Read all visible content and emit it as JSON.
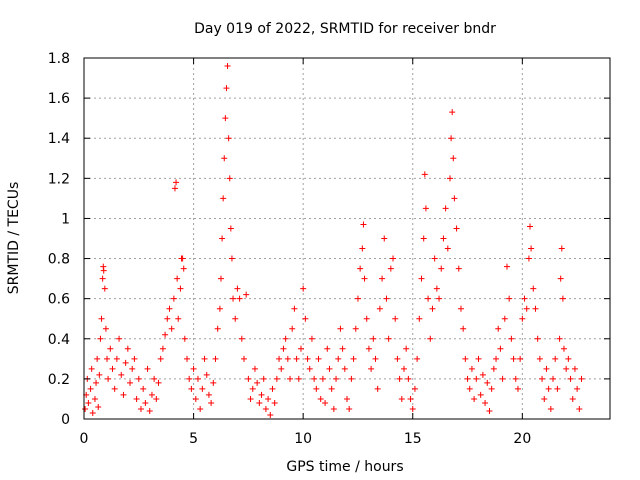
{
  "chart_data": {
    "type": "scatter",
    "title": "Day 019 of 2022, SRMTID for receiver bndr",
    "xlabel": "GPS time / hours",
    "ylabel": "SRMTID / TECUs",
    "xlim": [
      0,
      24
    ],
    "ylim": [
      0,
      1.8
    ],
    "xticks": [
      0,
      5,
      10,
      15,
      20
    ],
    "xtick_labels": [
      "0",
      "5",
      "10",
      "15",
      "20"
    ],
    "yticks": [
      0,
      0.2,
      0.4,
      0.6,
      0.8,
      1,
      1.2,
      1.4,
      1.6,
      1.8
    ],
    "ytick_labels": [
      "0",
      "0.2",
      "0.4",
      "0.6",
      "0.8",
      "1",
      "1.2",
      "1.4",
      "1.6",
      "1.8"
    ],
    "grid": true,
    "marker": "+",
    "color": "#ff0000",
    "series": [
      {
        "name": "SRMTID",
        "points": [
          [
            0.05,
            0.05
          ],
          [
            0.1,
            0.12
          ],
          [
            0.15,
            0.2
          ],
          [
            0.2,
            0.08
          ],
          [
            0.3,
            0.15
          ],
          [
            0.35,
            0.25
          ],
          [
            0.4,
            0.03
          ],
          [
            0.5,
            0.1
          ],
          [
            0.55,
            0.18
          ],
          [
            0.6,
            0.3
          ],
          [
            0.65,
            0.06
          ],
          [
            0.7,
            0.22
          ],
          [
            0.75,
            0.4
          ],
          [
            0.8,
            0.5
          ],
          [
            0.85,
            0.7
          ],
          [
            0.88,
            0.76
          ],
          [
            0.9,
            0.74
          ],
          [
            0.95,
            0.65
          ],
          [
            1.0,
            0.45
          ],
          [
            1.05,
            0.3
          ],
          [
            1.1,
            0.2
          ],
          [
            1.2,
            0.35
          ],
          [
            1.3,
            0.25
          ],
          [
            1.4,
            0.15
          ],
          [
            1.5,
            0.3
          ],
          [
            1.6,
            0.4
          ],
          [
            1.7,
            0.22
          ],
          [
            1.8,
            0.12
          ],
          [
            1.9,
            0.28
          ],
          [
            2.0,
            0.35
          ],
          [
            2.1,
            0.18
          ],
          [
            2.2,
            0.25
          ],
          [
            2.3,
            0.3
          ],
          [
            2.4,
            0.1
          ],
          [
            2.5,
            0.2
          ],
          [
            2.6,
            0.05
          ],
          [
            2.7,
            0.15
          ],
          [
            2.8,
            0.08
          ],
          [
            2.9,
            0.25
          ],
          [
            3.0,
            0.04
          ],
          [
            3.1,
            0.12
          ],
          [
            3.2,
            0.2
          ],
          [
            3.3,
            0.1
          ],
          [
            3.4,
            0.18
          ],
          [
            3.5,
            0.3
          ],
          [
            3.6,
            0.35
          ],
          [
            3.7,
            0.42
          ],
          [
            3.8,
            0.5
          ],
          [
            3.9,
            0.55
          ],
          [
            4.0,
            0.45
          ],
          [
            4.1,
            0.6
          ],
          [
            4.15,
            1.15
          ],
          [
            4.2,
            1.18
          ],
          [
            4.25,
            0.7
          ],
          [
            4.3,
            0.5
          ],
          [
            4.4,
            0.65
          ],
          [
            4.45,
            0.8
          ],
          [
            4.5,
            0.8
          ],
          [
            4.55,
            0.75
          ],
          [
            4.6,
            0.4
          ],
          [
            4.7,
            0.3
          ],
          [
            4.8,
            0.2
          ],
          [
            4.9,
            0.15
          ],
          [
            5.0,
            0.25
          ],
          [
            5.1,
            0.1
          ],
          [
            5.2,
            0.2
          ],
          [
            5.3,
            0.05
          ],
          [
            5.4,
            0.15
          ],
          [
            5.5,
            0.3
          ],
          [
            5.6,
            0.22
          ],
          [
            5.7,
            0.12
          ],
          [
            5.8,
            0.08
          ],
          [
            5.9,
            0.18
          ],
          [
            6.0,
            0.3
          ],
          [
            6.1,
            0.45
          ],
          [
            6.2,
            0.55
          ],
          [
            6.25,
            0.7
          ],
          [
            6.3,
            0.9
          ],
          [
            6.35,
            1.1
          ],
          [
            6.4,
            1.3
          ],
          [
            6.45,
            1.5
          ],
          [
            6.5,
            1.65
          ],
          [
            6.55,
            1.76
          ],
          [
            6.6,
            1.4
          ],
          [
            6.65,
            1.2
          ],
          [
            6.7,
            0.95
          ],
          [
            6.75,
            0.8
          ],
          [
            6.8,
            0.6
          ],
          [
            6.9,
            0.5
          ],
          [
            7.0,
            0.65
          ],
          [
            7.1,
            0.6
          ],
          [
            7.2,
            0.4
          ],
          [
            7.3,
            0.3
          ],
          [
            7.4,
            0.62
          ],
          [
            7.5,
            0.2
          ],
          [
            7.6,
            0.1
          ],
          [
            7.7,
            0.15
          ],
          [
            7.8,
            0.25
          ],
          [
            7.9,
            0.18
          ],
          [
            8.0,
            0.08
          ],
          [
            8.1,
            0.12
          ],
          [
            8.2,
            0.2
          ],
          [
            8.3,
            0.05
          ],
          [
            8.4,
            0.1
          ],
          [
            8.5,
            0.02
          ],
          [
            8.6,
            0.15
          ],
          [
            8.7,
            0.08
          ],
          [
            8.8,
            0.2
          ],
          [
            8.9,
            0.3
          ],
          [
            9.0,
            0.25
          ],
          [
            9.1,
            0.35
          ],
          [
            9.2,
            0.4
          ],
          [
            9.3,
            0.3
          ],
          [
            9.4,
            0.2
          ],
          [
            9.5,
            0.45
          ],
          [
            9.6,
            0.55
          ],
          [
            9.7,
            0.3
          ],
          [
            9.8,
            0.2
          ],
          [
            9.9,
            0.35
          ],
          [
            10.0,
            0.65
          ],
          [
            10.1,
            0.5
          ],
          [
            10.2,
            0.3
          ],
          [
            10.3,
            0.25
          ],
          [
            10.4,
            0.4
          ],
          [
            10.5,
            0.2
          ],
          [
            10.6,
            0.15
          ],
          [
            10.7,
            0.3
          ],
          [
            10.8,
            0.1
          ],
          [
            10.9,
            0.2
          ],
          [
            11.0,
            0.08
          ],
          [
            11.1,
            0.35
          ],
          [
            11.2,
            0.25
          ],
          [
            11.3,
            0.15
          ],
          [
            11.4,
            0.05
          ],
          [
            11.5,
            0.2
          ],
          [
            11.6,
            0.3
          ],
          [
            11.7,
            0.45
          ],
          [
            11.8,
            0.35
          ],
          [
            11.9,
            0.25
          ],
          [
            12.0,
            0.1
          ],
          [
            12.1,
            0.05
          ],
          [
            12.2,
            0.2
          ],
          [
            12.3,
            0.3
          ],
          [
            12.4,
            0.45
          ],
          [
            12.5,
            0.6
          ],
          [
            12.6,
            0.75
          ],
          [
            12.7,
            0.85
          ],
          [
            12.75,
            0.97
          ],
          [
            12.8,
            0.7
          ],
          [
            12.9,
            0.5
          ],
          [
            13.0,
            0.35
          ],
          [
            13.1,
            0.25
          ],
          [
            13.2,
            0.4
          ],
          [
            13.3,
            0.3
          ],
          [
            13.4,
            0.15
          ],
          [
            13.5,
            0.55
          ],
          [
            13.6,
            0.7
          ],
          [
            13.7,
            0.9
          ],
          [
            13.8,
            0.6
          ],
          [
            13.9,
            0.4
          ],
          [
            14.0,
            0.75
          ],
          [
            14.1,
            0.8
          ],
          [
            14.2,
            0.5
          ],
          [
            14.3,
            0.3
          ],
          [
            14.4,
            0.2
          ],
          [
            14.5,
            0.1
          ],
          [
            14.6,
            0.25
          ],
          [
            14.7,
            0.35
          ],
          [
            14.8,
            0.2
          ],
          [
            14.9,
            0.1
          ],
          [
            15.0,
            0.05
          ],
          [
            15.1,
            0.15
          ],
          [
            15.2,
            0.3
          ],
          [
            15.3,
            0.5
          ],
          [
            15.4,
            0.7
          ],
          [
            15.5,
            0.9
          ],
          [
            15.55,
            1.22
          ],
          [
            15.6,
            1.05
          ],
          [
            15.7,
            0.6
          ],
          [
            15.8,
            0.4
          ],
          [
            15.9,
            0.55
          ],
          [
            16.0,
            0.8
          ],
          [
            16.1,
            0.65
          ],
          [
            16.2,
            0.6
          ],
          [
            16.3,
            0.75
          ],
          [
            16.4,
            0.9
          ],
          [
            16.5,
            1.05
          ],
          [
            16.6,
            0.85
          ],
          [
            16.7,
            1.2
          ],
          [
            16.75,
            1.4
          ],
          [
            16.8,
            1.53
          ],
          [
            16.85,
            1.3
          ],
          [
            16.9,
            1.1
          ],
          [
            17.0,
            0.95
          ],
          [
            17.1,
            0.75
          ],
          [
            17.2,
            0.55
          ],
          [
            17.3,
            0.45
          ],
          [
            17.4,
            0.3
          ],
          [
            17.5,
            0.2
          ],
          [
            17.6,
            0.15
          ],
          [
            17.7,
            0.25
          ],
          [
            17.8,
            0.1
          ],
          [
            17.9,
            0.2
          ],
          [
            18.0,
            0.3
          ],
          [
            18.1,
            0.12
          ],
          [
            18.2,
            0.22
          ],
          [
            18.3,
            0.08
          ],
          [
            18.4,
            0.18
          ],
          [
            18.5,
            0.04
          ],
          [
            18.6,
            0.15
          ],
          [
            18.7,
            0.25
          ],
          [
            18.8,
            0.3
          ],
          [
            18.9,
            0.45
          ],
          [
            19.0,
            0.35
          ],
          [
            19.1,
            0.2
          ],
          [
            19.2,
            0.5
          ],
          [
            19.3,
            0.76
          ],
          [
            19.4,
            0.6
          ],
          [
            19.5,
            0.4
          ],
          [
            19.6,
            0.3
          ],
          [
            19.7,
            0.2
          ],
          [
            19.8,
            0.15
          ],
          [
            19.9,
            0.3
          ],
          [
            20.0,
            0.5
          ],
          [
            20.1,
            0.6
          ],
          [
            20.2,
            0.55
          ],
          [
            20.3,
            0.8
          ],
          [
            20.35,
            0.96
          ],
          [
            20.4,
            0.85
          ],
          [
            20.5,
            0.65
          ],
          [
            20.6,
            0.55
          ],
          [
            20.7,
            0.4
          ],
          [
            20.8,
            0.3
          ],
          [
            20.9,
            0.2
          ],
          [
            21.0,
            0.1
          ],
          [
            21.1,
            0.25
          ],
          [
            21.2,
            0.15
          ],
          [
            21.3,
            0.05
          ],
          [
            21.4,
            0.2
          ],
          [
            21.5,
            0.3
          ],
          [
            21.6,
            0.15
          ],
          [
            21.7,
            0.4
          ],
          [
            21.75,
            0.7
          ],
          [
            21.8,
            0.85
          ],
          [
            21.85,
            0.6
          ],
          [
            21.9,
            0.35
          ],
          [
            22.0,
            0.25
          ],
          [
            22.1,
            0.3
          ],
          [
            22.2,
            0.2
          ],
          [
            22.3,
            0.1
          ],
          [
            22.4,
            0.25
          ],
          [
            22.5,
            0.15
          ],
          [
            22.6,
            0.05
          ],
          [
            22.7,
            0.2
          ]
        ]
      }
    ]
  }
}
